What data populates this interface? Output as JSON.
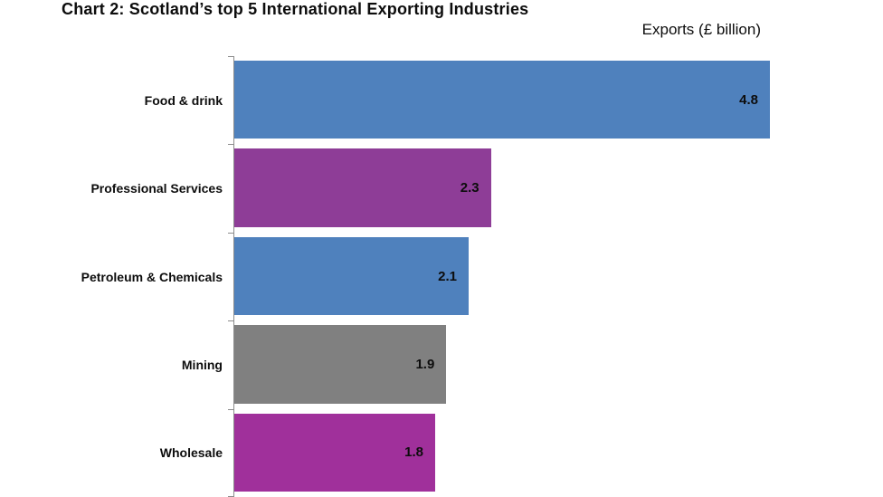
{
  "header": {
    "title": "Chart 2: Scotland’s top 5 International Exporting Industries",
    "axis_label": "Exports (£ billion)"
  },
  "chart_data": {
    "type": "bar",
    "orientation": "horizontal",
    "title": "Chart 2: Scotland’s top 5 International Exporting Industries",
    "xlabel": "Exports (£ billion)",
    "ylabel": "",
    "xlim": [
      0,
      5.7
    ],
    "grid": false,
    "legend": "none",
    "categories": [
      "Food & drink",
      "Professional Services",
      "Petroleum & Chemicals",
      "Mining",
      "Wholesale"
    ],
    "values": [
      4.8,
      2.3,
      2.1,
      1.9,
      1.8
    ],
    "value_labels": [
      "4.8",
      "2.3",
      "2.1",
      "1.9",
      "1.8"
    ],
    "bar_colors": [
      "#4f81bd",
      "#8e3d97",
      "#4f81bd",
      "#808080",
      "#a0309b"
    ],
    "axis_color": "#8c8c8c"
  }
}
